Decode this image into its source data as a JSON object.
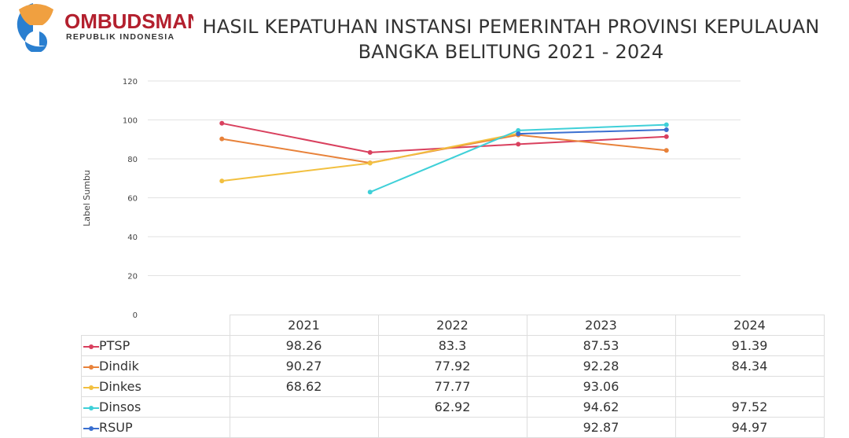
{
  "logo": {
    "name": "OMBUDSMAN",
    "subtitle": "REPUBLIK INDONESIA"
  },
  "title_line1": "HASIL KEPATUHAN INSTANSI PEMERINTAH PROVINSI KEPULAUAN",
  "title_line2": "BANGKA BELITUNG 2021 - 2024",
  "chart_data": {
    "type": "line",
    "title": "HASIL KEPATUHAN INSTANSI PEMERINTAH PROVINSI KEPULAUAN BANGKA BELITUNG 2021 - 2024",
    "ylabel": "Label Sumbu",
    "xlabel": "",
    "ylim": [
      0,
      120
    ],
    "yticks": [
      "0",
      "20",
      "40",
      "60",
      "80",
      "100",
      "120"
    ],
    "categories": [
      "2021",
      "2022",
      "2023",
      "2024"
    ],
    "grid": true,
    "legend": "data-table-bottom",
    "series": [
      {
        "name": "PTSP",
        "color": "#d9405e",
        "values": [
          98.26,
          83.3,
          87.53,
          91.39
        ],
        "labels": [
          "98.26",
          "83.3",
          "87.53",
          "91.39"
        ]
      },
      {
        "name": "Dindik",
        "color": "#e8823a",
        "values": [
          90.27,
          77.92,
          92.28,
          84.34
        ],
        "labels": [
          "90.27",
          "77.92",
          "92.28",
          "84.34"
        ]
      },
      {
        "name": "Dinkes",
        "color": "#f2c040",
        "values": [
          68.62,
          77.77,
          93.06,
          null
        ],
        "labels": [
          "68.62",
          "77.77",
          "93.06",
          ""
        ]
      },
      {
        "name": "Dinsos",
        "color": "#3fd0d8",
        "values": [
          null,
          62.92,
          94.62,
          97.52
        ],
        "labels": [
          "",
          "62.92",
          "94.62",
          "97.52"
        ]
      },
      {
        "name": "RSUP",
        "color": "#3a6fd0",
        "values": [
          null,
          null,
          92.87,
          94.97
        ],
        "labels": [
          "",
          "",
          "92.87",
          "94.97"
        ]
      }
    ]
  }
}
